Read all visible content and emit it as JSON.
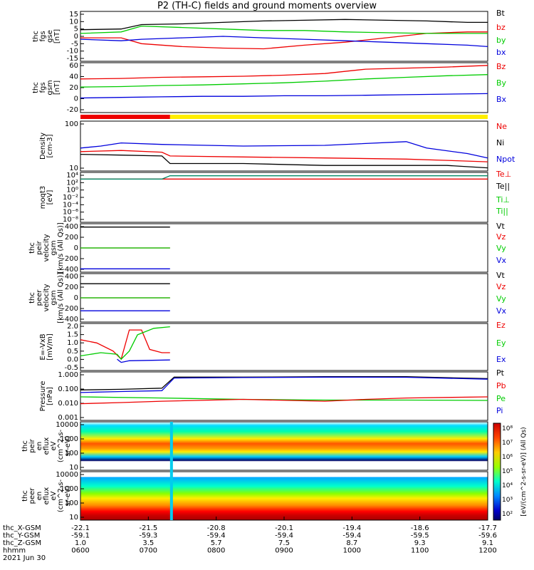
{
  "title": "P2 (TH-C) fields and ground moments overview",
  "colors": {
    "black": "#000000",
    "red": "#ee0000",
    "green": "#00cc00",
    "blue": "#0000dd",
    "yellow": "#ffee00",
    "teal": "#008866"
  },
  "chart_data": {
    "type": "line",
    "x_time_labels": [
      "0600",
      "0700",
      "0800",
      "0900",
      "1000",
      "1100",
      "1200"
    ],
    "footer": {
      "row_labels": [
        "thc_X-GSM",
        "thc_Y-GSM",
        "thc_Z-GSM",
        "hhmm",
        "2021 Jun 30"
      ],
      "x": [
        "-22.1",
        "-21.5",
        "-20.8",
        "-20.1",
        "-19.4",
        "-18.6",
        "-17.7"
      ],
      "y": [
        "-59.1",
        "-59.3",
        "-59.4",
        "-59.4",
        "-59.4",
        "-59.5",
        "-59.6"
      ],
      "z": [
        "1.0",
        "3.5",
        "5.7",
        "7.5",
        "8.7",
        "9.3",
        "9.1"
      ]
    },
    "panels": [
      {
        "ylabel": [
          "thc",
          "fgs",
          "gse",
          "[nT]"
        ],
        "yticks": [
          "15",
          "10",
          "5",
          "0",
          "-5",
          "-10",
          "-15"
        ],
        "legend": [
          {
            "t": "Bt",
            "c": "black"
          },
          {
            "t": "bz",
            "c": "red"
          },
          {
            "t": "by",
            "c": "green"
          },
          {
            "t": "bx",
            "c": "blue"
          }
        ],
        "series": [
          {
            "name": "Bt",
            "color": "black",
            "x": [
              0,
              0.1,
              0.15,
              0.25,
              0.35,
              0.45,
              0.55,
              0.65,
              0.75,
              0.85,
              0.95,
              1
            ],
            "y": [
              4.5,
              5,
              8,
              8.5,
              9.5,
              10.5,
              11,
              11.5,
              11,
              10.5,
              9.5,
              9.5
            ]
          },
          {
            "name": "bz",
            "color": "red",
            "x": [
              0,
              0.1,
              0.15,
              0.25,
              0.35,
              0.45,
              0.55,
              0.65,
              0.75,
              0.85,
              0.95,
              1
            ],
            "y": [
              -1,
              -1,
              -5,
              -7,
              -8,
              -8.5,
              -6,
              -4,
              -1,
              2,
              3,
              3
            ]
          },
          {
            "name": "by",
            "color": "green",
            "x": [
              0,
              0.1,
              0.15,
              0.25,
              0.35,
              0.45,
              0.55,
              0.65,
              0.75,
              0.85,
              0.95,
              1
            ],
            "y": [
              2,
              3,
              7,
              6,
              5,
              4,
              4,
              3,
              2.5,
              2,
              2,
              2
            ]
          },
          {
            "name": "bx",
            "color": "blue",
            "x": [
              0,
              0.1,
              0.15,
              0.25,
              0.35,
              0.45,
              0.55,
              0.65,
              0.75,
              0.85,
              0.95,
              1
            ],
            "y": [
              -2,
              -3,
              -2,
              -1,
              0,
              -1,
              -2,
              -3,
              -4,
              -5,
              -6,
              -7
            ]
          }
        ],
        "ylim": [
          -17,
          17
        ]
      },
      {
        "ylabel": [
          "thc",
          "fgs",
          "gsm",
          "[nT]"
        ],
        "yticks": [
          "60",
          "40",
          "20",
          "0",
          "-20"
        ],
        "legend": [
          {
            "t": "Bz",
            "c": "red"
          },
          {
            "t": "By",
            "c": "green"
          },
          {
            "t": "Bx",
            "c": "blue"
          }
        ],
        "series": [
          {
            "name": "Bz",
            "color": "red",
            "x": [
              0,
              0.1,
              0.2,
              0.3,
              0.4,
              0.5,
              0.6,
              0.7,
              0.8,
              0.9,
              1
            ],
            "y": [
              32,
              33,
              35,
              36,
              37,
              39,
              42,
              50,
              52,
              54,
              57
            ]
          },
          {
            "name": "By",
            "color": "green",
            "x": [
              0,
              0.1,
              0.2,
              0.3,
              0.4,
              0.5,
              0.6,
              0.7,
              0.8,
              0.9,
              1
            ],
            "y": [
              17,
              18,
              20,
              21,
              23,
              25,
              28,
              32,
              35,
              38,
              40
            ]
          },
          {
            "name": "Bx",
            "color": "blue",
            "x": [
              0,
              0.1,
              0.2,
              0.3,
              0.4,
              0.5,
              0.6,
              0.7,
              0.8,
              0.9,
              1
            ],
            "y": [
              -3,
              -2,
              -1,
              0,
              0,
              1,
              1,
              2,
              3,
              4,
              5
            ]
          }
        ],
        "ylim": [
          -30,
          62
        ]
      },
      {
        "ylabel": [
          "Density",
          "[cm-3]"
        ],
        "yticks": [
          "100",
          "10"
        ],
        "ylog": true,
        "ylim": [
          3,
          300
        ],
        "legend": [
          {
            "t": "Ne",
            "c": "red"
          },
          {
            "t": "Ni",
            "c": "black"
          },
          {
            "t": "Npot",
            "c": "blue"
          }
        ],
        "series": [
          {
            "name": "Ne",
            "color": "red",
            "x": [
              0,
              0.1,
              0.2,
              0.22,
              0.4,
              0.6,
              0.8,
              0.9,
              1
            ],
            "y": [
              18,
              20,
              17,
              12,
              11,
              10,
              9,
              8,
              7
            ]
          },
          {
            "name": "Ni",
            "color": "black",
            "x": [
              0,
              0.1,
              0.2,
              0.22,
              0.4,
              0.6,
              0.8,
              0.9,
              1
            ],
            "y": [
              14,
              13,
              12,
              6,
              6,
              5,
              5,
              5,
              4
            ]
          },
          {
            "name": "Npot",
            "color": "blue",
            "x": [
              0,
              0.05,
              0.1,
              0.2,
              0.4,
              0.6,
              0.8,
              0.85,
              0.95,
              1
            ],
            "y": [
              25,
              30,
              40,
              35,
              30,
              32,
              45,
              25,
              15,
              10
            ]
          }
        ]
      },
      {
        "ylabel": [
          "moqt3",
          "[eV]"
        ],
        "yticks": [
          "10⁴",
          "10²",
          "10⁰",
          "10⁻²",
          "10⁻⁴",
          "10⁻⁶",
          "10⁻⁸"
        ],
        "legend": [
          {
            "t": "Te⊥",
            "c": "red"
          },
          {
            "t": "Te||",
            "c": "black"
          },
          {
            "t": "Ti⊥",
            "c": "green"
          },
          {
            "t": "Ti||",
            "c": "green"
          }
        ],
        "series": [
          {
            "name": "Te⊥",
            "color": "red",
            "x": [
              0,
              1
            ],
            "y": [
              2.7,
              2.7
            ]
          },
          {
            "name": "Ti",
            "color": "teal",
            "x": [
              0,
              0.2,
              0.22,
              1
            ],
            "y": [
              2.7,
              2.7,
              3.6,
              3.6
            ]
          }
        ],
        "ylim": [
          -9,
          4.5
        ]
      },
      {
        "ylabel": [
          "thc",
          "peir",
          "velocity",
          "gsm",
          "[km/s (All Qs)]"
        ],
        "yticks": [
          "400",
          "200",
          "0",
          "-200",
          "-400"
        ],
        "legend": [
          {
            "t": "Vt",
            "c": "black"
          },
          {
            "t": "Vz",
            "c": "red"
          },
          {
            "t": "Vy",
            "c": "green"
          },
          {
            "t": "Vx",
            "c": "blue"
          }
        ],
        "series": [
          {
            "name": "Vt",
            "color": "black",
            "x": [
              0,
              0.22
            ],
            "y": [
              370,
              370
            ]
          },
          {
            "name": "Vz",
            "color": "red",
            "x": [
              0,
              0.22
            ],
            "y": [
              0,
              0
            ]
          },
          {
            "name": "Vy",
            "color": "green",
            "x": [
              0,
              0.22
            ],
            "y": [
              0,
              0
            ]
          },
          {
            "name": "Vx",
            "color": "blue",
            "x": [
              0,
              0.22
            ],
            "y": [
              -370,
              -370
            ]
          }
        ],
        "ylim": [
          -430,
          430
        ]
      },
      {
        "ylabel": [
          "thc",
          "peer",
          "velocity",
          "gsm",
          "[km/s (All Qs)]"
        ],
        "yticks": [
          "400",
          "200",
          "0",
          "-200",
          "-400"
        ],
        "legend": [
          {
            "t": "Vt",
            "c": "black"
          },
          {
            "t": "Vz",
            "c": "red"
          },
          {
            "t": "Vy",
            "c": "green"
          },
          {
            "t": "Vx",
            "c": "blue"
          }
        ],
        "series": [
          {
            "name": "Vt",
            "color": "black",
            "x": [
              0,
              0.22
            ],
            "y": [
              250,
              250
            ]
          },
          {
            "name": "Vz",
            "color": "red",
            "x": [
              0,
              0.22
            ],
            "y": [
              0,
              0
            ]
          },
          {
            "name": "Vy",
            "color": "green",
            "x": [
              0,
              0.22
            ],
            "y": [
              0,
              0
            ]
          },
          {
            "name": "Vx",
            "color": "blue",
            "x": [
              0,
              0.22
            ],
            "y": [
              -230,
              -230
            ]
          }
        ],
        "ylim": [
          -430,
          430
        ]
      },
      {
        "ylabel": [
          "E=-VxB",
          "[mV/m]"
        ],
        "yticks": [
          "2.0",
          "1.5",
          "1.0",
          "0.5",
          "0.0",
          "-0.5"
        ],
        "legend": [
          {
            "t": "Ez",
            "c": "red"
          },
          {
            "t": "Ey",
            "c": "green"
          },
          {
            "t": "Ex",
            "c": "blue"
          }
        ],
        "series": [
          {
            "name": "Ez",
            "color": "red",
            "x": [
              0,
              0.04,
              0.08,
              0.1,
              0.12,
              0.15,
              0.17,
              0.2,
              0.22
            ],
            "y": [
              1.2,
              1.0,
              0.5,
              0.0,
              1.8,
              1.8,
              0.6,
              0.4,
              0.4
            ]
          },
          {
            "name": "Ey",
            "color": "green",
            "x": [
              0,
              0.05,
              0.09,
              0.1,
              0.12,
              0.14,
              0.18,
              0.22
            ],
            "y": [
              0.2,
              0.4,
              0.3,
              0,
              0.5,
              1.5,
              1.9,
              2.0
            ]
          },
          {
            "name": "Ex",
            "color": "blue",
            "x": [
              0.09,
              0.1,
              0.12,
              0.22
            ],
            "y": [
              0,
              -0.2,
              -0.1,
              -0.05
            ]
          }
        ],
        "ylim": [
          -0.7,
          2.2
        ]
      },
      {
        "ylabel": [
          "Pressure",
          "[nPa]"
        ],
        "yticks": [
          "1.000",
          "0.100",
          "0.010",
          "0.001"
        ],
        "ylog": true,
        "ylim": [
          0.0007,
          1.6
        ],
        "legend": [
          {
            "t": "Pt",
            "c": "black"
          },
          {
            "t": "Pb",
            "c": "red"
          },
          {
            "t": "Pe",
            "c": "green"
          },
          {
            "t": "Pi",
            "c": "blue"
          }
        ],
        "series": [
          {
            "name": "Pt",
            "color": "black",
            "x": [
              0,
              0.1,
              0.2,
              0.23,
              0.4,
              0.6,
              0.8,
              1
            ],
            "y": [
              0.09,
              0.1,
              0.12,
              0.7,
              0.7,
              0.75,
              0.75,
              0.55
            ]
          },
          {
            "name": "Pi",
            "color": "blue",
            "x": [
              0,
              0.1,
              0.2,
              0.23,
              0.4,
              0.6,
              0.8,
              1
            ],
            "y": [
              0.06,
              0.07,
              0.08,
              0.6,
              0.65,
              0.7,
              0.68,
              0.5
            ]
          },
          {
            "name": "Pe",
            "color": "green",
            "x": [
              0,
              0.2,
              0.4,
              0.6,
              0.8,
              1
            ],
            "y": [
              0.03,
              0.025,
              0.02,
              0.018,
              0.018,
              0.017
            ]
          },
          {
            "name": "Pb",
            "color": "red",
            "x": [
              0,
              0.1,
              0.2,
              0.4,
              0.6,
              0.7,
              0.8,
              1
            ],
            "y": [
              0.01,
              0.012,
              0.015,
              0.02,
              0.015,
              0.02,
              0.025,
              0.03
            ]
          }
        ]
      },
      {
        "ylabel": [
          "thc",
          "peir",
          "en",
          "eflux",
          "eV",
          "(cm^2-s-",
          "sr-eV)"
        ],
        "yticks": [
          "10000",
          "1000",
          "100",
          "10"
        ],
        "spectrogram": true
      },
      {
        "ylabel": [
          "thc",
          "peer",
          "en",
          "eflux",
          "eV",
          "(cm^2-s-",
          "sr-eV)"
        ],
        "yticks": [
          "10000",
          "1000",
          "100",
          "10"
        ],
        "spectrogram": true
      }
    ],
    "colorbar": {
      "ticks": [
        "10⁸",
        "10⁷",
        "10⁶",
        "10⁵",
        "10⁴",
        "10³",
        "10²"
      ],
      "label": "[eV/(cm^2-s-sr-eV)] (All Qs)"
    }
  }
}
